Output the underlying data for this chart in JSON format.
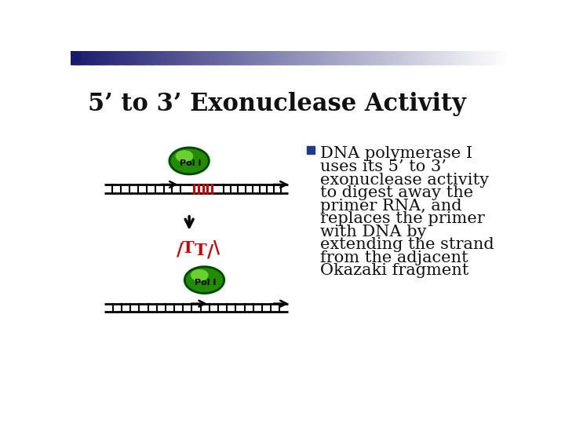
{
  "title": "5’ to 3’ Exonuclease Activity",
  "title_fontsize": 22,
  "background_color": "#ffffff",
  "header_gradient_left": "#1a1a6e",
  "header_gradient_right": "#ffffff",
  "bullet_color": "#1f3c88",
  "bullet_text_fontsize": 15,
  "dna_line_color": "#000000",
  "rna_color": "#cc0000",
  "pol_color": "#228b00",
  "pol_outline": "#004400",
  "pol_inner_color": "#88ee44",
  "arrow_color": "#cc0000",
  "down_arrow_color": "#000000",
  "bullet_lines": [
    "DNA polymerase I",
    "uses its 5’ to 3’",
    "exonuclease activity",
    "to digest away the",
    "primer RNA, and",
    "replaces the primer",
    "with DNA by",
    "extending the strand",
    "from the adjacent",
    "Okazaki fragment"
  ]
}
